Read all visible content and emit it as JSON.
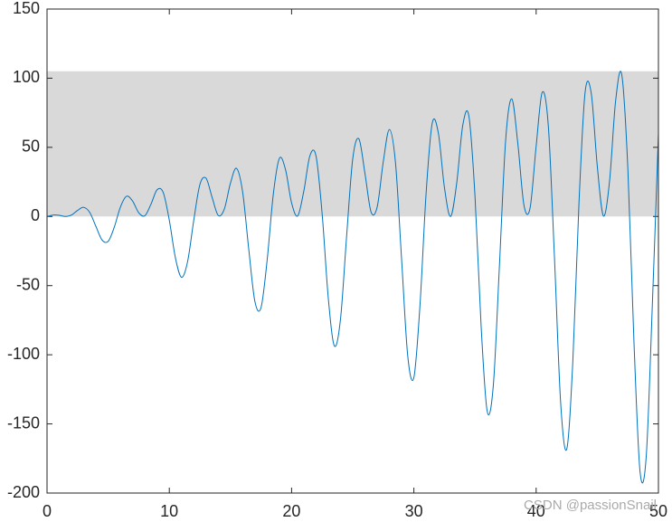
{
  "chart_data": {
    "type": "line",
    "x": [
      0,
      0.5,
      1,
      1.5,
      2,
      2.5,
      3,
      3.5,
      4,
      4.5,
      5,
      5.5,
      6,
      6.5,
      7,
      7.5,
      8,
      8.5,
      9,
      9.5,
      10,
      10.5,
      11,
      11.5,
      12,
      12.5,
      13,
      13.5,
      14,
      14.5,
      15,
      15.5,
      16,
      16.5,
      17,
      17.5,
      18,
      18.5,
      19,
      19.5,
      20,
      20.5,
      21,
      21.5,
      22,
      22.5,
      23,
      23.5,
      24,
      24.5,
      25,
      25.5,
      26,
      26.5,
      27,
      27.5,
      28,
      28.5,
      29,
      29.5,
      30,
      30.5,
      31,
      31.5,
      32,
      32.5,
      33,
      33.5,
      34,
      34.5,
      35,
      35.5,
      36,
      36.5,
      37,
      37.5,
      38,
      38.5,
      39,
      39.5,
      40,
      40.5,
      41,
      41.5,
      42,
      42.5,
      43,
      43.5,
      44,
      44.5,
      45,
      45.5,
      46,
      46.5,
      47,
      47.5,
      48,
      48.5,
      49,
      49.5,
      50
    ],
    "series": [
      {
        "color": "#0072bd",
        "values": [
          0,
          1.0,
          0.85,
          0.02,
          1.02,
          4.41,
          6.61,
          2.82,
          -7.22,
          -17.0,
          -17.98,
          -7.72,
          6.78,
          14.59,
          11.12,
          2.67,
          0.5,
          8.89,
          19.3,
          17.37,
          -2.72,
          -29.99,
          -44,
          -32.4,
          -2.7,
          23.1,
          27.7,
          13.8,
          0.8,
          5.4,
          24.1,
          34.8,
          17.5,
          -24.0,
          -61.5,
          -65.9,
          -31.6,
          15.7,
          42.0,
          34.0,
          9.8,
          0.4,
          18.4,
          44.0,
          43.6,
          1.7,
          -58.9,
          -93.6,
          -74.2,
          -14.2,
          41.7,
          56.2,
          31.1,
          3.2,
          6.9,
          39.7,
          62.9,
          38.5,
          -31.6,
          -101.0,
          -116.4,
          -64.1,
          16.7,
          67.4,
          60.4,
          20.9,
          0.0,
          23.9,
          66.0,
          72.5,
          14.4,
          -79.4,
          -141.0,
          -121.8,
          -35.0,
          54.5,
          85.1,
          52.9,
          8.3,
          6.0,
          50.8,
          89.9,
          64.9,
          -30.2,
          -134.2,
          -168.3,
          -104.6,
          9.3,
          89.5,
          89.4,
          36.3,
          0.4,
          25.3,
          83.7,
          102.6,
          34.4,
          -91.0,
          -184.9,
          -173.7,
          -64.4,
          60.0
        ]
      }
    ],
    "band": [
      0,
      105
    ],
    "band_color": "#d9d9d9",
    "xlim": [
      0,
      50
    ],
    "xticks": [
      0,
      10,
      20,
      30,
      40,
      50
    ],
    "ylim": [
      -200,
      150
    ],
    "yticks": [
      -200,
      -150,
      -100,
      -50,
      0,
      50,
      100,
      150
    ],
    "watermark": "CSDN @passionSnail"
  }
}
